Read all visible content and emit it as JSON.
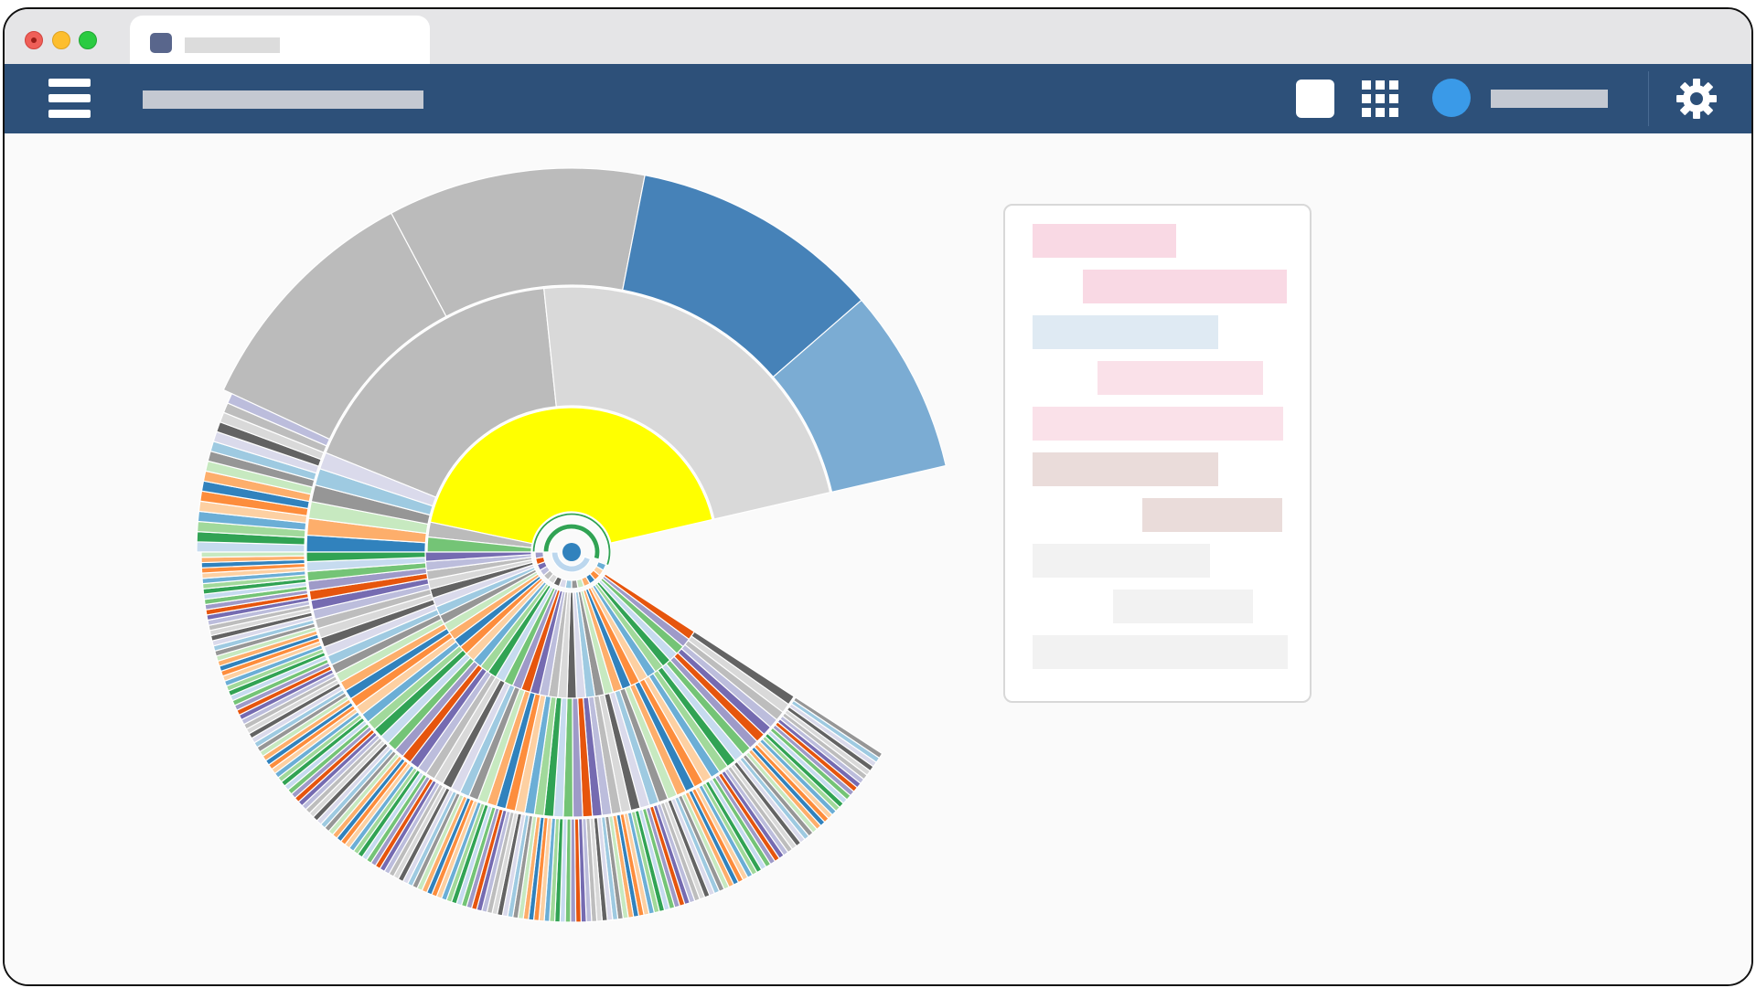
{
  "browser": {
    "tab": {
      "title_placeholder": "",
      "icon": "tab-favicon-icon"
    },
    "window_controls": [
      "close-icon",
      "minimize-icon",
      "zoom-icon"
    ]
  },
  "app_bar": {
    "background": "#2d5079",
    "menu_icon": "hamburger-menu-icon",
    "title_placeholder": "",
    "icons": [
      "square-icon",
      "apps-grid-icon",
      "avatar",
      "gear-icon"
    ],
    "user_name_placeholder": ""
  },
  "chart_data": {
    "type": "sunburst",
    "title": "",
    "center_color": "#3182bd",
    "rings": [
      {
        "level": 1,
        "segments": [
          {
            "color": "#31a354",
            "share": 0.86
          }
        ]
      },
      {
        "level": 2,
        "segments": [
          {
            "color": "#ffff00",
            "share": 0.27
          },
          {
            "color": "#bbbbbb",
            "share": 0.04
          },
          {
            "color": "#74c476",
            "share": 0.03
          }
        ]
      },
      {
        "level": 3,
        "segments": [
          {
            "color": "#bbbbbb",
            "share": 0.17
          },
          {
            "color": "#d9d9d9",
            "share": 0.12
          }
        ]
      },
      {
        "level": 4,
        "segments": [
          {
            "color": "#bbbbbb",
            "share": 0.12
          },
          {
            "color": "#bbbbbb",
            "share": 0.11
          },
          {
            "color": "#4682b8",
            "share": 0.11
          },
          {
            "color": "#7bacd3",
            "share": 0.08
          }
        ]
      }
    ],
    "palette": [
      "#e6550d",
      "#c6dbef",
      "#6baed6",
      "#3182bd",
      "#969696",
      "#636363",
      "#bcbddc",
      "#9e9ac8",
      "#31a354",
      "#fdd0a2",
      "#fdae6b",
      "#9ecae1",
      "#d9d9d9",
      "#756bb1",
      "#74c476",
      "#a1d99b",
      "#fd8d3c",
      "#c7e9c0",
      "#dadaeb",
      "#bdbdbd"
    ]
  },
  "legend": {
    "items": [
      {
        "color": "#f9d9e4"
      },
      {
        "color": "#f9d9e4"
      },
      {
        "color": "#dfeaf3"
      },
      {
        "color": "#fae1e9"
      },
      {
        "color": "#fae1e9"
      },
      {
        "color": "#eadcda"
      },
      {
        "color": "#eadcda"
      },
      {
        "color": "#f2f2f2"
      },
      {
        "color": "#f2f2f2"
      },
      {
        "color": "#f2f2f2"
      }
    ]
  }
}
